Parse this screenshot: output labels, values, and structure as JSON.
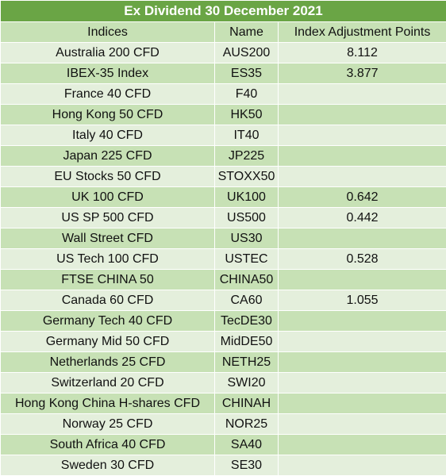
{
  "title": "Ex Dividend 30 December 2021",
  "headers": {
    "indices": "Indices",
    "name": "Name",
    "points": "Index Adjustment Points"
  },
  "rows": [
    {
      "index": "Australia 200 CFD",
      "name": "AUS200",
      "points": "8.112"
    },
    {
      "index": "IBEX-35 Index",
      "name": "ES35",
      "points": "3.877"
    },
    {
      "index": "France 40 CFD",
      "name": "F40",
      "points": ""
    },
    {
      "index": "Hong Kong 50 CFD",
      "name": "HK50",
      "points": ""
    },
    {
      "index": "Italy 40 CFD",
      "name": "IT40",
      "points": ""
    },
    {
      "index": "Japan 225 CFD",
      "name": "JP225",
      "points": ""
    },
    {
      "index": "EU Stocks 50 CFD",
      "name": "STOXX50",
      "points": ""
    },
    {
      "index": "UK 100 CFD",
      "name": "UK100",
      "points": "0.642"
    },
    {
      "index": "US SP 500 CFD",
      "name": "US500",
      "points": "0.442"
    },
    {
      "index": "Wall Street CFD",
      "name": "US30",
      "points": ""
    },
    {
      "index": "US Tech 100 CFD",
      "name": "USTEC",
      "points": "0.528"
    },
    {
      "index": "FTSE CHINA 50",
      "name": "CHINA50",
      "points": ""
    },
    {
      "index": "Canada 60 CFD",
      "name": "CA60",
      "points": "1.055"
    },
    {
      "index": "Germany Tech 40 CFD",
      "name": "TecDE30",
      "points": ""
    },
    {
      "index": "Germany Mid 50 CFD",
      "name": "MidDE50",
      "points": ""
    },
    {
      "index": "Netherlands 25 CFD",
      "name": "NETH25",
      "points": ""
    },
    {
      "index": "Switzerland 20 CFD",
      "name": "SWI20",
      "points": ""
    },
    {
      "index": "Hong Kong China H-shares CFD",
      "name": "CHINAH",
      "points": ""
    },
    {
      "index": "Norway 25 CFD",
      "name": "NOR25",
      "points": ""
    },
    {
      "index": "South Africa 40 CFD",
      "name": "SA40",
      "points": ""
    },
    {
      "index": "Sweden 30 CFD",
      "name": "SE30",
      "points": ""
    }
  ],
  "colors": {
    "title_bg": "#6aa545",
    "header_bg": "#c7e1b5",
    "row_light": "#e4efdc",
    "row_dark": "#c7e1b5"
  }
}
